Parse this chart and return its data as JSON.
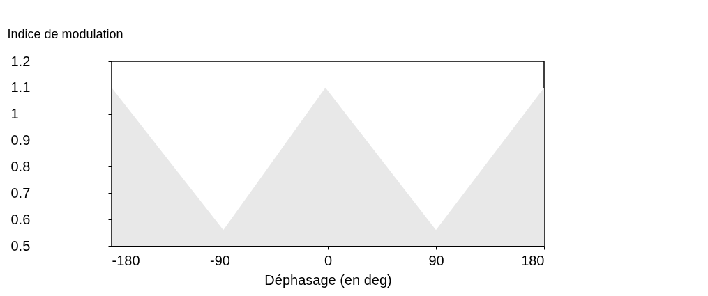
{
  "chart_data": {
    "type": "area",
    "xlabel": "Déphasage (en deg)",
    "ylabel": "Indice de modulation",
    "x": [
      -180,
      -87,
      -2,
      90,
      180
    ],
    "series": [
      {
        "color": "#e8e8e8",
        "values": [
          1.1,
          0.56,
          1.1,
          0.56,
          1.1
        ]
      }
    ],
    "xlim": [
      -180,
      180
    ],
    "xticks": [
      -180,
      -90,
      0,
      90,
      180
    ],
    "ylim": [
      0.5,
      1.2
    ],
    "yticks": [
      0.5,
      0.6,
      0.7,
      0.8,
      0.9,
      1,
      1.1,
      1.2
    ],
    "grid": false
  }
}
